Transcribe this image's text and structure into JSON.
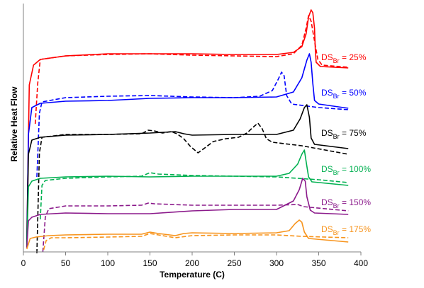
{
  "chart_data": {
    "type": "line",
    "title": "",
    "xlabel": "Temperature (C)",
    "ylabel": "Relative Heat Flow",
    "xlim": [
      0,
      400
    ],
    "xticks": [
      0,
      50,
      100,
      150,
      200,
      250,
      300,
      350,
      400
    ],
    "y_ticks_shown": false,
    "grid": false,
    "legend": "none",
    "series": [
      {
        "label_main": "DS",
        "label_sub": "Br",
        "label_rest": " = 25%",
        "color": "#ff0000",
        "solid": [
          [
            4,
            338
          ],
          [
            7,
            120
          ],
          [
            12,
            92
          ],
          [
            20,
            84
          ],
          [
            50,
            79
          ],
          [
            100,
            76
          ],
          [
            150,
            76
          ],
          [
            200,
            76
          ],
          [
            250,
            77
          ],
          [
            300,
            77
          ],
          [
            320,
            74
          ],
          [
            330,
            66
          ],
          [
            335,
            48
          ],
          [
            338,
            24
          ],
          [
            341,
            14
          ],
          [
            343,
            18
          ],
          [
            345,
            40
          ],
          [
            346,
            70
          ],
          [
            347,
            88
          ],
          [
            352,
            94
          ],
          [
            385,
            96
          ]
        ],
        "dashed": [
          [
            14,
            175
          ],
          [
            17,
            118
          ],
          [
            20,
            84
          ],
          [
            50,
            79
          ],
          [
            100,
            77
          ],
          [
            150,
            76
          ],
          [
            200,
            78
          ],
          [
            250,
            79
          ],
          [
            300,
            80
          ],
          [
            320,
            76
          ],
          [
            330,
            64
          ],
          [
            335,
            40
          ],
          [
            338,
            22
          ],
          [
            341,
            30
          ],
          [
            345,
            58
          ],
          [
            349,
            84
          ],
          [
            354,
            92
          ],
          [
            385,
            95
          ]
        ]
      },
      {
        "label_main": "DS",
        "label_sub": "Br",
        "label_rest": " = 50%",
        "color": "#0000ff",
        "solid": [
          [
            4,
            345
          ],
          [
            6,
            190
          ],
          [
            10,
            152
          ],
          [
            20,
            146
          ],
          [
            50,
            143
          ],
          [
            100,
            142
          ],
          [
            150,
            139
          ],
          [
            200,
            138
          ],
          [
            250,
            138
          ],
          [
            300,
            137
          ],
          [
            320,
            130
          ],
          [
            330,
            110
          ],
          [
            336,
            85
          ],
          [
            339,
            76
          ],
          [
            341,
            88
          ],
          [
            343,
            118
          ],
          [
            345,
            142
          ],
          [
            350,
            147
          ],
          [
            385,
            153
          ]
        ],
        "dashed": [
          [
            16,
            250
          ],
          [
            19,
            160
          ],
          [
            22,
            144
          ],
          [
            50,
            138
          ],
          [
            100,
            136
          ],
          [
            150,
            135
          ],
          [
            200,
            137
          ],
          [
            250,
            138
          ],
          [
            280,
            136
          ],
          [
            295,
            128
          ],
          [
            302,
            112
          ],
          [
            306,
            102
          ],
          [
            309,
            107
          ],
          [
            312,
            135
          ],
          [
            318,
            147
          ],
          [
            350,
            152
          ],
          [
            385,
            155
          ]
        ]
      },
      {
        "label_main": "DS",
        "label_sub": "Br",
        "label_rest": " = 75%",
        "color": "#000000",
        "solid": [
          [
            4,
            349
          ],
          [
            6,
            218
          ],
          [
            10,
            198
          ],
          [
            20,
            194
          ],
          [
            50,
            191
          ],
          [
            100,
            190
          ],
          [
            150,
            188
          ],
          [
            180,
            186
          ],
          [
            190,
            189
          ],
          [
            200,
            191
          ],
          [
            250,
            190
          ],
          [
            300,
            190
          ],
          [
            320,
            184
          ],
          [
            328,
            168
          ],
          [
            333,
            152
          ],
          [
            336,
            148
          ],
          [
            339,
            166
          ],
          [
            341,
            195
          ],
          [
            345,
            204
          ],
          [
            385,
            210
          ]
        ],
        "dashed": [
          [
            16,
            358
          ],
          [
            19,
            216
          ],
          [
            22,
            194
          ],
          [
            50,
            190
          ],
          [
            100,
            190
          ],
          [
            140,
            189
          ],
          [
            148,
            184
          ],
          [
            155,
            185
          ],
          [
            165,
            188
          ],
          [
            175,
            186
          ],
          [
            182,
            189
          ],
          [
            190,
            196
          ],
          [
            198,
            207
          ],
          [
            207,
            216
          ],
          [
            215,
            209
          ],
          [
            225,
            200
          ],
          [
            240,
            196
          ],
          [
            255,
            194
          ],
          [
            265,
            188
          ],
          [
            272,
            180
          ],
          [
            278,
            174
          ],
          [
            283,
            182
          ],
          [
            288,
            196
          ],
          [
            295,
            201
          ],
          [
            330,
            206
          ],
          [
            385,
            218
          ]
        ]
      },
      {
        "label_main": "DS",
        "label_sub": "Br",
        "label_rest": " = 100%",
        "color": "#00b050",
        "solid": [
          [
            4,
            350
          ],
          [
            6,
            264
          ],
          [
            10,
            256
          ],
          [
            20,
            252
          ],
          [
            50,
            250
          ],
          [
            100,
            249
          ],
          [
            150,
            250
          ],
          [
            200,
            249
          ],
          [
            250,
            249
          ],
          [
            300,
            249
          ],
          [
            315,
            245
          ],
          [
            325,
            232
          ],
          [
            330,
            218
          ],
          [
            333,
            212
          ],
          [
            335,
            228
          ],
          [
            338,
            250
          ],
          [
            342,
            257
          ],
          [
            385,
            262
          ]
        ],
        "dashed": [
          [
            20,
            310
          ],
          [
            22,
            262
          ],
          [
            26,
            255
          ],
          [
            50,
            252
          ],
          [
            100,
            250
          ],
          [
            140,
            249
          ],
          [
            150,
            244
          ],
          [
            160,
            246
          ],
          [
            200,
            248
          ],
          [
            250,
            249
          ],
          [
            300,
            250
          ],
          [
            350,
            254
          ],
          [
            385,
            258
          ]
        ]
      },
      {
        "label_main": "DS",
        "label_sub": "Br",
        "label_rest": " = 150%",
        "color": "#8b1a8b",
        "solid": [
          [
            4,
            350
          ],
          [
            6,
            312
          ],
          [
            10,
            307
          ],
          [
            20,
            303
          ],
          [
            50,
            301
          ],
          [
            100,
            302
          ],
          [
            150,
            302
          ],
          [
            200,
            298
          ],
          [
            250,
            296
          ],
          [
            300,
            296
          ],
          [
            320,
            284
          ],
          [
            327,
            268
          ],
          [
            331,
            252
          ],
          [
            334,
            256
          ],
          [
            336,
            278
          ],
          [
            340,
            297
          ],
          [
            345,
            301
          ],
          [
            385,
            303
          ]
        ],
        "dashed": [
          [
            23,
            356
          ],
          [
            26,
            307
          ],
          [
            30,
            295
          ],
          [
            50,
            291
          ],
          [
            100,
            291
          ],
          [
            140,
            290
          ],
          [
            148,
            287
          ],
          [
            155,
            288
          ],
          [
            200,
            290
          ],
          [
            250,
            290
          ],
          [
            300,
            290
          ],
          [
            325,
            289
          ],
          [
            332,
            292
          ],
          [
            340,
            293
          ],
          [
            385,
            298
          ]
        ]
      },
      {
        "label_main": "DS",
        "label_sub": "Br",
        "label_rest": " = 175%",
        "color": "#f7941d",
        "solid": [
          [
            4,
            352
          ],
          [
            8,
            337
          ],
          [
            15,
            335
          ],
          [
            30,
            333
          ],
          [
            50,
            332
          ],
          [
            100,
            331
          ],
          [
            140,
            331
          ],
          [
            150,
            328
          ],
          [
            160,
            330
          ],
          [
            180,
            333
          ],
          [
            190,
            330
          ],
          [
            200,
            329
          ],
          [
            250,
            330
          ],
          [
            300,
            329
          ],
          [
            315,
            326
          ],
          [
            322,
            316
          ],
          [
            327,
            311
          ],
          [
            330,
            314
          ],
          [
            333,
            328
          ],
          [
            338,
            337
          ],
          [
            385,
            342
          ]
        ],
        "dashed": [
          [
            24,
            353
          ],
          [
            27,
            340
          ],
          [
            33,
            336
          ],
          [
            50,
            336
          ],
          [
            100,
            335
          ],
          [
            140,
            334
          ],
          [
            150,
            330
          ],
          [
            160,
            332
          ],
          [
            180,
            336
          ],
          [
            200,
            333
          ],
          [
            250,
            332
          ],
          [
            300,
            332
          ],
          [
            330,
            334
          ],
          [
            385,
            336
          ]
        ]
      }
    ]
  }
}
